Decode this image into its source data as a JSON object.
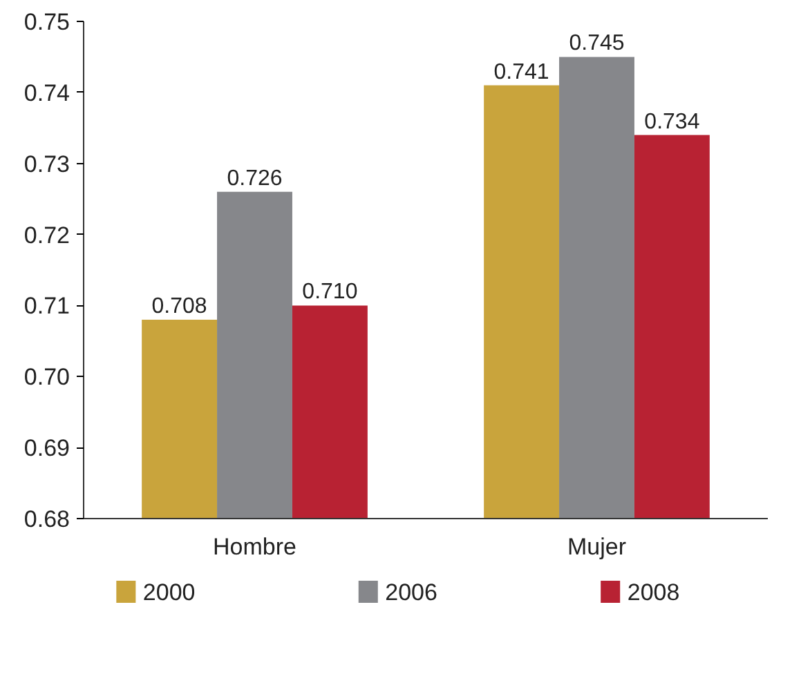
{
  "chart_data": {
    "type": "bar",
    "categories": [
      "Hombre",
      "Mujer"
    ],
    "series": [
      {
        "name": "2000",
        "color": "#c9a43c",
        "values": [
          0.708,
          0.741
        ],
        "value_labels": [
          "0.708",
          "0.741"
        ]
      },
      {
        "name": "2006",
        "color": "#86878b",
        "values": [
          0.726,
          0.745
        ],
        "value_labels": [
          "0.726",
          "0.745"
        ]
      },
      {
        "name": "2008",
        "color": "#b82233",
        "values": [
          0.71,
          0.734
        ],
        "value_labels": [
          "0.710",
          "0.734"
        ]
      }
    ],
    "ylim": [
      0.68,
      0.75
    ],
    "yticks": [
      {
        "value": 0.68,
        "label": "0.68"
      },
      {
        "value": 0.69,
        "label": "0.69"
      },
      {
        "value": 0.7,
        "label": "0.70"
      },
      {
        "value": 0.71,
        "label": "0.71"
      },
      {
        "value": 0.72,
        "label": "0.72"
      },
      {
        "value": 0.73,
        "label": "0.73"
      },
      {
        "value": 0.74,
        "label": "0.74"
      },
      {
        "value": 0.75,
        "label": "0.75"
      }
    ],
    "grid": false,
    "legend": "bottom"
  }
}
